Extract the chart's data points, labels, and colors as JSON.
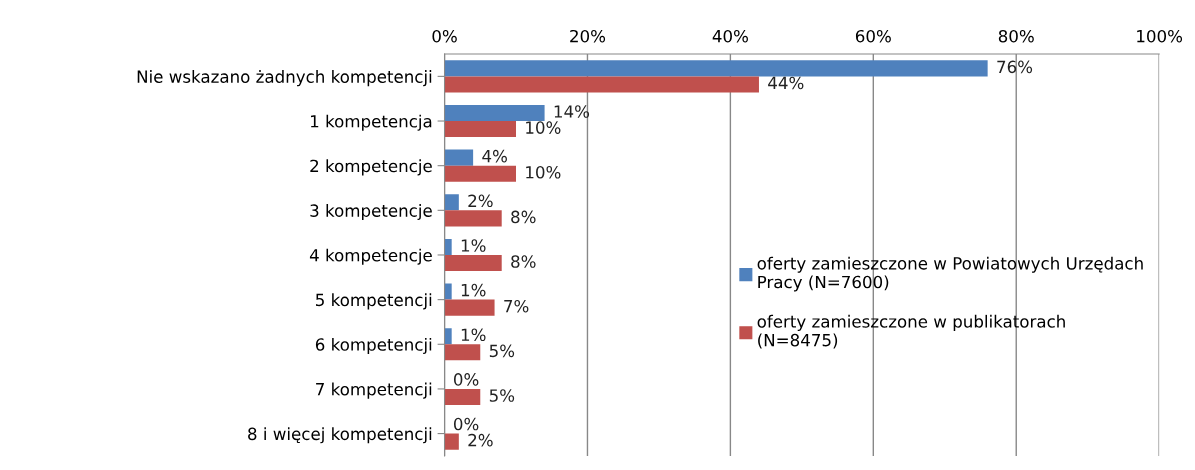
{
  "chart_data": {
    "type": "bar",
    "orientation": "horizontal",
    "categories": [
      "Nie wskazano żadnych kompetencji",
      "1 kompetencja",
      "2 kompetencje",
      "3 kompetencje",
      "4 kompetencje",
      "5 kompetencji",
      "6 kompetencji",
      "7 kompetencji",
      "8 i więcej kompetencji"
    ],
    "series": [
      {
        "name": "oferty zamieszczone w Powiatowych Urzędach Pracy (N=7600)",
        "color": "#4f81bd",
        "values": [
          76,
          14,
          4,
          2,
          1,
          1,
          1,
          0,
          0
        ],
        "value_labels": [
          "76%",
          "14%",
          "4%",
          "2%",
          "1%",
          "1%",
          "1%",
          "0%",
          "0%"
        ]
      },
      {
        "name": "oferty zamieszczone w publikatorach (N=8475)",
        "color": "#c0504d",
        "values": [
          44,
          10,
          10,
          8,
          8,
          7,
          5,
          5,
          2
        ],
        "value_labels": [
          "44%",
          "10%",
          "10%",
          "8%",
          "8%",
          "7%",
          "5%",
          "5%",
          "2%"
        ]
      }
    ],
    "xlim": [
      0,
      100
    ],
    "xticks": [
      {
        "value": 0,
        "label": "0%"
      },
      {
        "value": 20,
        "label": "20%"
      },
      {
        "value": 40,
        "label": "40%"
      },
      {
        "value": 60,
        "label": "60%"
      },
      {
        "value": 80,
        "label": "80%"
      },
      {
        "value": 100,
        "label": "100%"
      }
    ],
    "grid": "x",
    "legend": "right"
  }
}
